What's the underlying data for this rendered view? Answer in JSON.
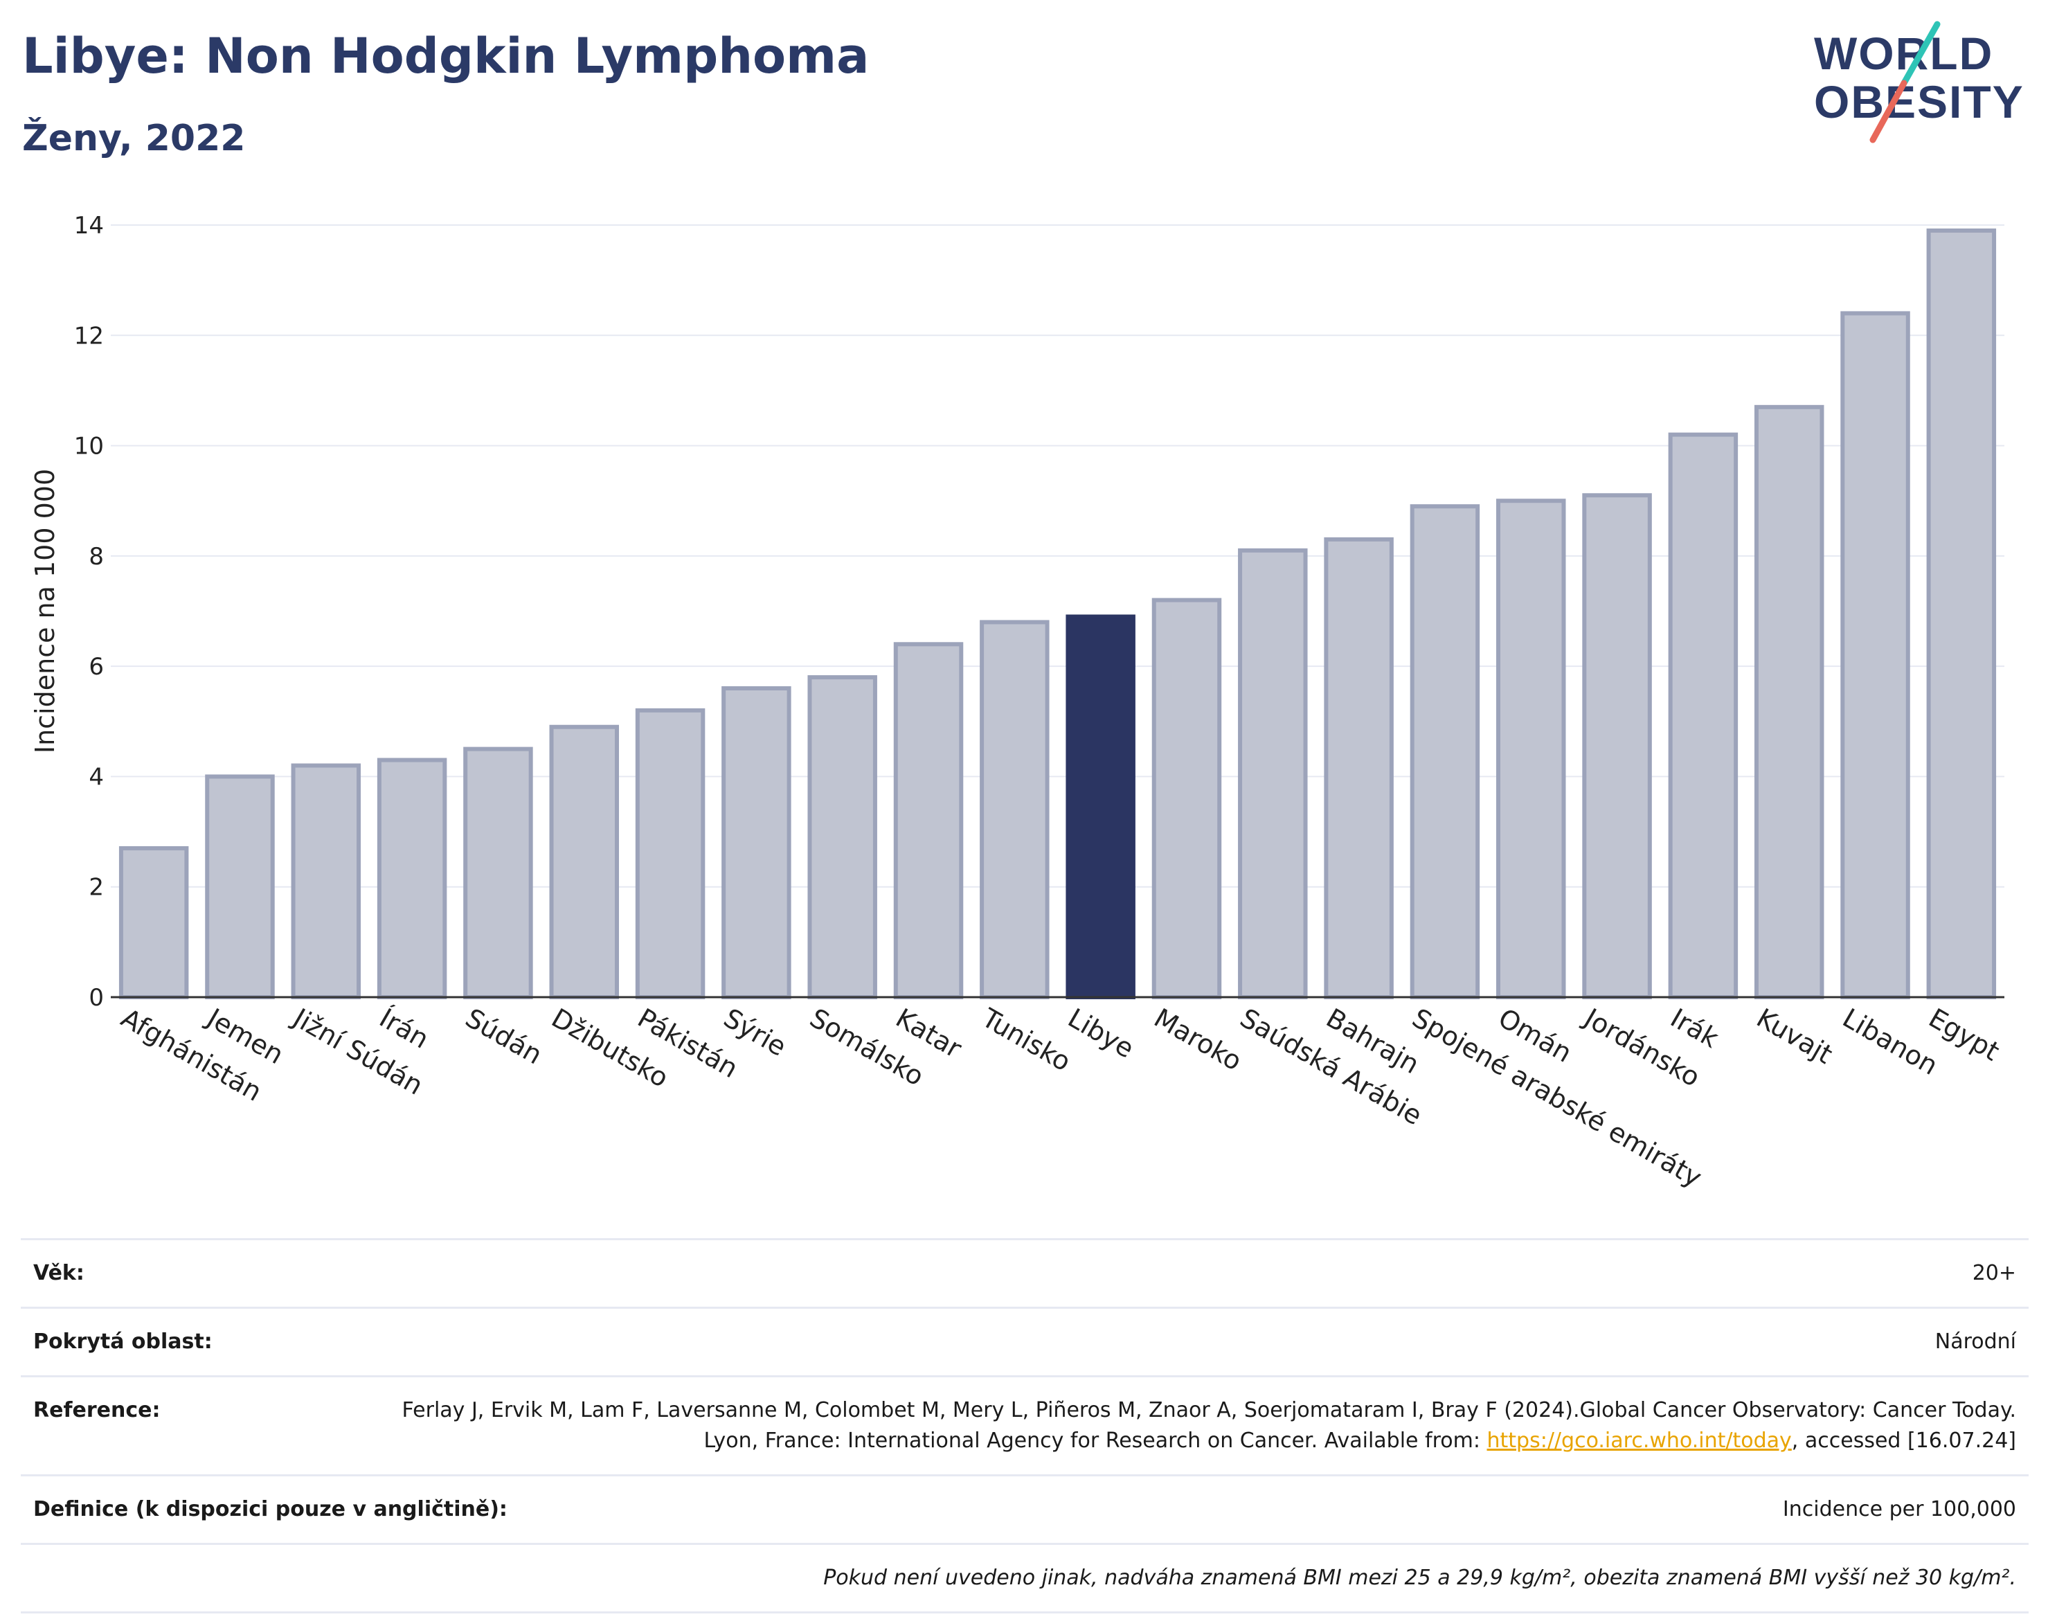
{
  "header": {
    "title": "Libye: Non Hodgkin Lymphoma",
    "subtitle": "Ženy, 2022"
  },
  "logo": {
    "line1": "WORLD",
    "line2": "OBESITY"
  },
  "colors": {
    "highlight": "#2b3562",
    "bar_fill": "#c0c4d1",
    "bar_stroke": "#9ca3ba",
    "title": "#2b3a67",
    "grid": "#e6e9f2",
    "logo_teal": "#2ec4b6",
    "logo_red": "#e8685a"
  },
  "chart_data": {
    "type": "bar",
    "ylabel": "Incidence na 100 000",
    "ylim": [
      0,
      14
    ],
    "yticks": [
      0,
      2,
      4,
      6,
      8,
      10,
      12,
      14
    ],
    "grid": true,
    "highlight": "Libye",
    "categories": [
      "Afghánistán",
      "Jemen",
      "Jižní Súdán",
      "Írán",
      "Súdán",
      "Džibutsko",
      "Pákistán",
      "Sýrie",
      "Somálsko",
      "Katar",
      "Tunisko",
      "Libye",
      "Maroko",
      "Saúdská Arábie",
      "Bahrajn",
      "Spojené arabské emiráty",
      "Omán",
      "Jordánsko",
      "Irák",
      "Kuvajt",
      "Libanon",
      "Egypt"
    ],
    "values": [
      2.7,
      4.0,
      4.2,
      4.3,
      4.5,
      4.9,
      5.2,
      5.6,
      5.8,
      6.4,
      6.8,
      6.9,
      7.2,
      8.1,
      8.3,
      8.9,
      9.0,
      9.1,
      10.2,
      10.7,
      12.4,
      13.9
    ]
  },
  "info": {
    "age_label": "Věk:",
    "age_value": "20+",
    "area_label": "Pokrytá oblast:",
    "area_value": "Národní",
    "ref_label": "Reference:",
    "ref_text": "Ferlay J, Ervik M, Lam F, Laversanne M, Colombet M, Mery L, Piñeros M, Znaor A, Soerjomataram I, Bray F (2024).Global Cancer Observatory: Cancer Today. Lyon, France: International Agency for Research on Cancer. Available from: ",
    "ref_link": "https://gco.iarc.who.int/today",
    "ref_tail": ", accessed [16.07.24]",
    "def_label": "Definice (k dispozici pouze v angličtině):",
    "def_value": "Incidence per 100,000",
    "note": "Pokud není uvedeno jinak, nadváha znamená BMI mezi 25 a 29,9 kg/m², obezita znamená BMI vyšší než 30 kg/m²."
  }
}
